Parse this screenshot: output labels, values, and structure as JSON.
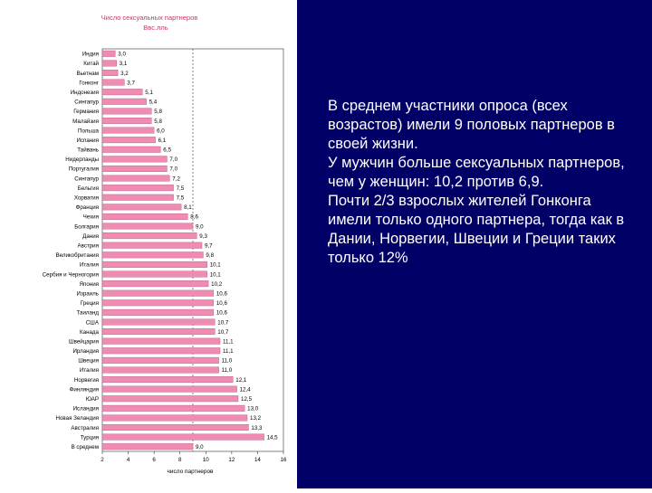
{
  "colors": {
    "background_right": "#000066",
    "bar_fill": "#f08cb4",
    "bar_stroke": "#b0567e",
    "text_light": "#ffffff",
    "title_color": "#cc3366"
  },
  "summary": [
    "В среднем участники опроса (всех возрастов) имели 9 половых партнеров в своей жизни.",
    "У мужчин больше сексуальных партнеров, чем у женщин: 10,2 против 6,9.",
    "Почти 2/3 взрослых жителей Гонконга имели только одного партнера, тогда как в Дании, Норвегии, Швеции и Греции таких только 12%"
  ],
  "chart_data": {
    "type": "bar",
    "orientation": "horizontal",
    "title": "Число сексуальных партнеров",
    "subtitle": "Ввс.лль",
    "xlabel": "число партнеров",
    "xlim": [
      2,
      16
    ],
    "xticks": [
      "2",
      "4",
      "6",
      "8",
      "10",
      "12",
      "14",
      "16"
    ],
    "grid": false,
    "average_line": 9.0,
    "categories": [
      "Индия",
      "Китай",
      "Вьетнам",
      "Гонконг",
      "Индонезия",
      "Сингапур",
      "Германия",
      "Малайзия",
      "Польша",
      "Испания",
      "Тайвань",
      "Нидерланды",
      "Португалия",
      "Сингапур",
      "Бельгия",
      "Хорватия",
      "Франция",
      "Чехия",
      "Болгария",
      "Дания",
      "Австрия",
      "Великобритания",
      "Италия",
      "Сербия и Черногория",
      "Япония",
      "Израиль",
      "Греция",
      "Таиланд",
      "США",
      "Канада",
      "Швейцария",
      "Ирландия",
      "Швеция",
      "Италия",
      "Норвегия",
      "Финляндия",
      "ЮАР",
      "Исландия",
      "Новая Зеландия",
      "Австралия",
      "Турция",
      "В среднем"
    ],
    "values": [
      3.0,
      3.1,
      3.2,
      3.7,
      5.1,
      5.4,
      5.8,
      5.8,
      6.0,
      6.1,
      6.5,
      7.0,
      7.0,
      7.2,
      7.5,
      7.5,
      8.1,
      8.6,
      9.0,
      9.3,
      9.7,
      9.8,
      10.1,
      10.1,
      10.2,
      10.6,
      10.6,
      10.6,
      10.7,
      10.7,
      11.1,
      11.1,
      11.0,
      11.0,
      12.1,
      12.4,
      12.5,
      13.0,
      13.2,
      13.3,
      14.5,
      9.0
    ],
    "value_labels": [
      "3,0",
      "3,1",
      "3,2",
      "3,7",
      "5,1",
      "5,4",
      "5,8",
      "5,8",
      "6,0",
      "6,1",
      "6,5",
      "7,0",
      "7,0",
      "7,2",
      "7,5",
      "7,5",
      "8,1",
      "8,6",
      "9,0",
      "9,3",
      "9,7",
      "9,8",
      "10,1",
      "10,1",
      "10,2",
      "10,6",
      "10,6",
      "10,6",
      "10,7",
      "10,7",
      "11,1",
      "11,1",
      "11,0",
      "11,0",
      "12,1",
      "12,4",
      "12,5",
      "13,0",
      "13,2",
      "13,3",
      "14,5",
      "9,0"
    ]
  }
}
